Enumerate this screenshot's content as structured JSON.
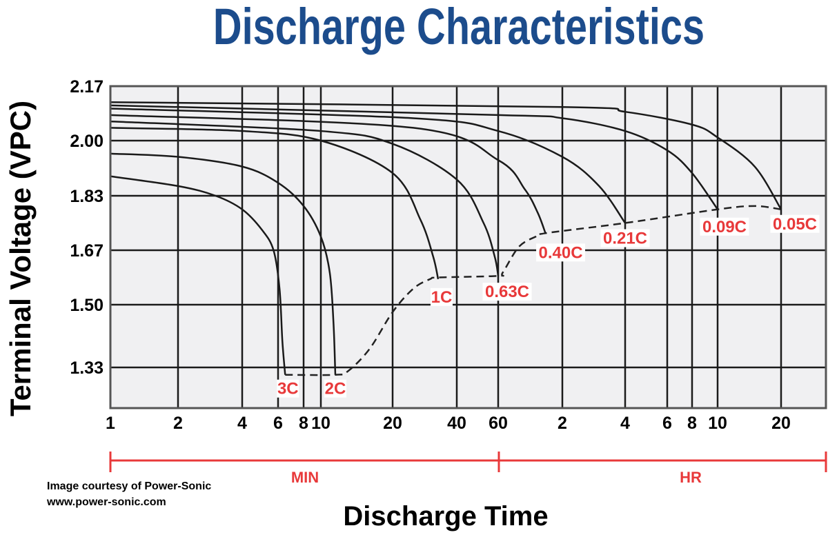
{
  "chart_data": {
    "type": "line",
    "title": "Discharge Characteristics",
    "xlabel": "Discharge Time",
    "ylabel": "Terminal Voltage (VPC)",
    "x_scale": "log",
    "x_unit_groups": [
      {
        "label": "MIN",
        "range_minutes": [
          1,
          60
        ]
      },
      {
        "label": "HR",
        "range_minutes": [
          60,
          1950
        ]
      }
    ],
    "x_ticks": [
      {
        "minutes": 1,
        "label": "1"
      },
      {
        "minutes": 2,
        "label": "2"
      },
      {
        "minutes": 4,
        "label": "4"
      },
      {
        "minutes": 6,
        "label": "6"
      },
      {
        "minutes": 8,
        "label": "8"
      },
      {
        "minutes": 10,
        "label": "10"
      },
      {
        "minutes": 20,
        "label": "20"
      },
      {
        "minutes": 40,
        "label": "40"
      },
      {
        "minutes": 60,
        "label": "60"
      },
      {
        "minutes": 120,
        "label": "2"
      },
      {
        "minutes": 240,
        "label": "4"
      },
      {
        "minutes": 360,
        "label": "6"
      },
      {
        "minutes": 480,
        "label": "8"
      },
      {
        "minutes": 600,
        "label": "10"
      },
      {
        "minutes": 1200,
        "label": "20"
      }
    ],
    "y_ticks": [
      "1.33",
      "1.50",
      "1.67",
      "1.83",
      "2.00",
      "2.17"
    ],
    "ylim": [
      1.2,
      2.17
    ],
    "grid": true,
    "series": [
      {
        "name": "3C",
        "points": [
          [
            1,
            1.89
          ],
          [
            2,
            1.86
          ],
          [
            3,
            1.83
          ],
          [
            4,
            1.79
          ],
          [
            5,
            1.73
          ],
          [
            5.7,
            1.67
          ],
          [
            6.1,
            1.55
          ],
          [
            6.3,
            1.4
          ],
          [
            6.5,
            1.31
          ]
        ]
      },
      {
        "name": "2C",
        "points": [
          [
            1,
            1.96
          ],
          [
            2,
            1.95
          ],
          [
            4,
            1.92
          ],
          [
            6,
            1.87
          ],
          [
            8,
            1.8
          ],
          [
            10,
            1.71
          ],
          [
            10.9,
            1.6
          ],
          [
            11.3,
            1.45
          ],
          [
            11.5,
            1.31
          ]
        ]
      },
      {
        "name": "1C",
        "points": [
          [
            1,
            2.04
          ],
          [
            4,
            2.03
          ],
          [
            10,
            2.0
          ],
          [
            20,
            1.9
          ],
          [
            27,
            1.76
          ],
          [
            31,
            1.65
          ],
          [
            32.7,
            1.58
          ]
        ]
      },
      {
        "name": "0.63C",
        "points": [
          [
            1,
            2.06
          ],
          [
            10,
            2.03
          ],
          [
            20,
            1.99
          ],
          [
            40,
            1.88
          ],
          [
            52,
            1.75
          ],
          [
            58,
            1.65
          ],
          [
            60,
            1.59
          ]
        ]
      },
      {
        "name": "0.40C",
        "points": [
          [
            1,
            2.08
          ],
          [
            25,
            2.04
          ],
          [
            60,
            1.94
          ],
          [
            80,
            1.85
          ],
          [
            92,
            1.78
          ],
          [
            100,
            1.72
          ]
        ]
      },
      {
        "name": "0.21C",
        "points": [
          [
            1,
            2.1
          ],
          [
            25,
            2.07
          ],
          [
            60,
            2.03
          ],
          [
            120,
            1.95
          ],
          [
            180,
            1.86
          ],
          [
            240,
            1.75
          ]
        ]
      },
      {
        "name": "0.09C",
        "points": [
          [
            1,
            2.11
          ],
          [
            60,
            2.08
          ],
          [
            120,
            2.07
          ],
          [
            240,
            2.03
          ],
          [
            360,
            1.97
          ],
          [
            480,
            1.9
          ],
          [
            600,
            1.79
          ]
        ]
      },
      {
        "name": "0.05C",
        "points": [
          [
            1,
            2.12
          ],
          [
            120,
            2.105
          ],
          [
            240,
            2.09
          ],
          [
            480,
            2.05
          ],
          [
            600,
            2.01
          ],
          [
            900,
            1.92
          ],
          [
            1200,
            1.79
          ]
        ]
      }
    ],
    "end_voltage_line": {
      "style": "dashed",
      "points": [
        [
          6.5,
          1.31
        ],
        [
          11.5,
          1.31
        ],
        [
          13,
          1.32
        ],
        [
          16,
          1.38
        ],
        [
          20,
          1.48
        ],
        [
          25,
          1.55
        ],
        [
          30,
          1.58
        ],
        [
          33,
          1.585
        ],
        [
          60,
          1.59
        ],
        [
          63,
          1.6
        ],
        [
          75,
          1.68
        ],
        [
          90,
          1.71
        ],
        [
          100,
          1.72
        ],
        [
          240,
          1.75
        ],
        [
          600,
          1.79
        ],
        [
          900,
          1.8
        ],
        [
          1200,
          1.79
        ]
      ]
    }
  },
  "credit": {
    "line1": "Image courtesy of Power-Sonic",
    "line2": "www.power-sonic.com"
  },
  "colors": {
    "title": "#1c4c8c",
    "accent_red": "#e8393a",
    "plot_bg": "#f0f0f2",
    "grid": "#1a1a1a"
  }
}
